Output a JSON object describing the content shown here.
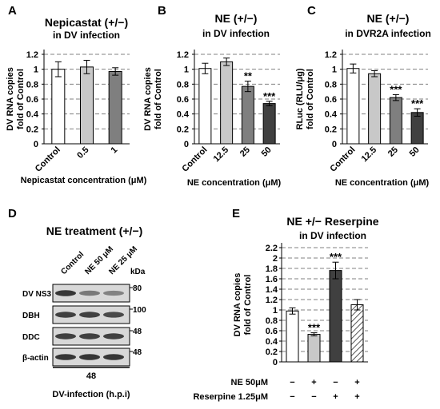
{
  "chart_data": [
    {
      "panel": "A",
      "type": "bar",
      "title": "Nepicastat (+/−)",
      "subtitle": "in DV infection",
      "ylabel": [
        "DV RNA copies",
        "fold of Control"
      ],
      "xlabel": "Nepicastat concentration (μM)",
      "categories": [
        "Control",
        "0.5",
        "1"
      ],
      "values": [
        1.0,
        1.03,
        0.97
      ],
      "errors": [
        0.1,
        0.09,
        0.05
      ],
      "significance": [
        "",
        "",
        ""
      ],
      "bar_colors": [
        "#ffffff",
        "#c8c8c8",
        "#7f7f7f"
      ],
      "ylim": [
        0,
        1.2
      ],
      "yticks": [
        "0",
        "0.2",
        "0.4",
        "0.6",
        "0.8",
        "1",
        "1.2"
      ],
      "grid": "dashed horizontal"
    },
    {
      "panel": "B",
      "type": "bar",
      "title": "NE (+/−)",
      "subtitle": "in DV infection",
      "ylabel": [
        "DV RNA copies",
        "fold of Control"
      ],
      "xlabel": "NE concentration (μM)",
      "categories": [
        "Control",
        "12.5",
        "25",
        "50"
      ],
      "values": [
        1.01,
        1.1,
        0.77,
        0.54
      ],
      "errors": [
        0.07,
        0.05,
        0.07,
        0.03
      ],
      "significance": [
        "",
        "",
        "**",
        "***"
      ],
      "bar_colors": [
        "#ffffff",
        "#c8c8c8",
        "#7f7f7f",
        "#404040"
      ],
      "ylim": [
        0,
        1.2
      ],
      "yticks": [
        "0",
        "0.2",
        "0.4",
        "0.6",
        "0.8",
        "1",
        "1.2"
      ],
      "grid": "dashed horizontal"
    },
    {
      "panel": "C",
      "type": "bar",
      "title": "NE (+/−)",
      "subtitle": "in DVR2A infection",
      "ylabel": [
        "RLuc (RLU/μg)",
        "fold of Control"
      ],
      "xlabel": "NE concentration (μM)",
      "categories": [
        "Control",
        "12.5",
        "25",
        "50"
      ],
      "values": [
        1.01,
        0.94,
        0.62,
        0.42
      ],
      "errors": [
        0.06,
        0.04,
        0.04,
        0.05
      ],
      "significance": [
        "",
        "",
        "***",
        "***"
      ],
      "bar_colors": [
        "#ffffff",
        "#c8c8c8",
        "#7f7f7f",
        "#404040"
      ],
      "ylim": [
        0,
        1.2
      ],
      "yticks": [
        "0",
        "0.2",
        "0.4",
        "0.6",
        "0.8",
        "1",
        "1.2"
      ],
      "grid": "dashed horizontal"
    },
    {
      "panel": "E",
      "type": "bar",
      "title": "NE +/− Reserpine",
      "subtitle": "in DV infection",
      "ylabel": [
        "DV RNA copies",
        "fold of Control"
      ],
      "values": [
        0.98,
        0.53,
        1.76,
        1.1
      ],
      "errors": [
        0.06,
        0.03,
        0.16,
        0.1
      ],
      "significance": [
        "",
        "***",
        "***",
        ""
      ],
      "bar_colors": [
        "#ffffff",
        "#c8c8c8",
        "#404040",
        "hatched"
      ],
      "ylim": [
        0,
        2.2
      ],
      "yticks": [
        "0",
        "0.2",
        "0.4",
        "0.6",
        "0.8",
        "1",
        "1.2",
        "1.4",
        "1.6",
        "1.8",
        "2",
        "2.2"
      ],
      "grid": "dashed horizontal",
      "conditions": [
        {
          "label": "NE 50μM",
          "values": [
            "−",
            "+",
            "−",
            "+"
          ]
        },
        {
          "label": "Reserpine 1.25μM",
          "values": [
            "−",
            "−",
            "+",
            "+"
          ]
        }
      ]
    }
  ],
  "panels": {
    "A": "A",
    "B": "B",
    "C": "C",
    "D": "D",
    "E": "E"
  },
  "blot": {
    "title": "NE treatment (+/−)",
    "lanes": [
      "Control",
      "NE 50 μM",
      "NE 25 μM"
    ],
    "kda": "kDa",
    "rows": [
      {
        "label": "DV NS3",
        "marker": "80"
      },
      {
        "label": "DBH",
        "marker": "100"
      },
      {
        "label": "DDC",
        "marker": "48"
      },
      {
        "label": "β-actin",
        "marker": "48"
      }
    ],
    "timepoint": "48",
    "footer": "DV-infection (h.p.i)",
    "intensities": [
      [
        0.85,
        0.5,
        0.45
      ],
      [
        0.8,
        0.8,
        0.75
      ],
      [
        0.8,
        0.8,
        0.8
      ],
      [
        0.85,
        0.85,
        0.85
      ]
    ]
  }
}
